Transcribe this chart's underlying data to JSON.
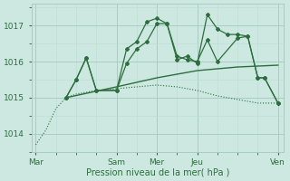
{
  "xlabel": "Pression niveau de la mer( hPa )",
  "bg_color": "#cce8e0",
  "grid_color_major": "#aaccc4",
  "grid_color_minor": "#bcdcd6",
  "line_color": "#2d6e3e",
  "x_ticks_pos": [
    0,
    96,
    144,
    192,
    288
  ],
  "x_tick_labels": [
    "Mar",
    "Sam",
    "Mer",
    "Jeu",
    "Ven"
  ],
  "ylim": [
    1013.5,
    1017.6
  ],
  "yticks": [
    1014,
    1015,
    1016,
    1017
  ],
  "series": {
    "dotted_low": [
      [
        0,
        1013.7
      ],
      [
        12,
        1014.1
      ],
      [
        24,
        1014.7
      ],
      [
        36,
        1015.0
      ],
      [
        48,
        1015.1
      ],
      [
        60,
        1015.15
      ],
      [
        72,
        1015.2
      ],
      [
        96,
        1015.25
      ],
      [
        120,
        1015.3
      ],
      [
        144,
        1015.35
      ],
      [
        168,
        1015.3
      ],
      [
        192,
        1015.2
      ],
      [
        216,
        1015.05
      ],
      [
        240,
        1014.95
      ],
      [
        264,
        1014.85
      ],
      [
        288,
        1014.85
      ]
    ],
    "smooth_up": [
      [
        36,
        1015.0
      ],
      [
        96,
        1015.3
      ],
      [
        144,
        1015.55
      ],
      [
        192,
        1015.75
      ],
      [
        240,
        1015.85
      ],
      [
        288,
        1015.9
      ]
    ],
    "line_volatile1": [
      [
        36,
        1015.0
      ],
      [
        48,
        1015.5
      ],
      [
        60,
        1016.1
      ],
      [
        72,
        1015.2
      ],
      [
        96,
        1015.2
      ],
      [
        108,
        1015.95
      ],
      [
        120,
        1016.35
      ],
      [
        132,
        1016.55
      ],
      [
        144,
        1017.05
      ],
      [
        156,
        1017.05
      ],
      [
        168,
        1016.15
      ],
      [
        180,
        1016.05
      ],
      [
        192,
        1016.0
      ],
      [
        204,
        1016.6
      ],
      [
        216,
        1016.0
      ],
      [
        240,
        1016.65
      ],
      [
        252,
        1016.7
      ],
      [
        264,
        1015.55
      ],
      [
        272,
        1015.55
      ],
      [
        288,
        1014.85
      ]
    ],
    "line_volatile2": [
      [
        36,
        1015.0
      ],
      [
        48,
        1015.5
      ],
      [
        60,
        1016.1
      ],
      [
        72,
        1015.2
      ],
      [
        96,
        1015.2
      ],
      [
        108,
        1016.35
      ],
      [
        120,
        1016.55
      ],
      [
        132,
        1017.1
      ],
      [
        144,
        1017.2
      ],
      [
        156,
        1017.05
      ],
      [
        168,
        1016.05
      ],
      [
        180,
        1016.15
      ],
      [
        192,
        1015.95
      ],
      [
        204,
        1017.3
      ],
      [
        216,
        1016.9
      ],
      [
        228,
        1016.75
      ],
      [
        240,
        1016.75
      ],
      [
        252,
        1016.7
      ],
      [
        264,
        1015.55
      ],
      [
        272,
        1015.55
      ],
      [
        288,
        1014.85
      ]
    ]
  }
}
